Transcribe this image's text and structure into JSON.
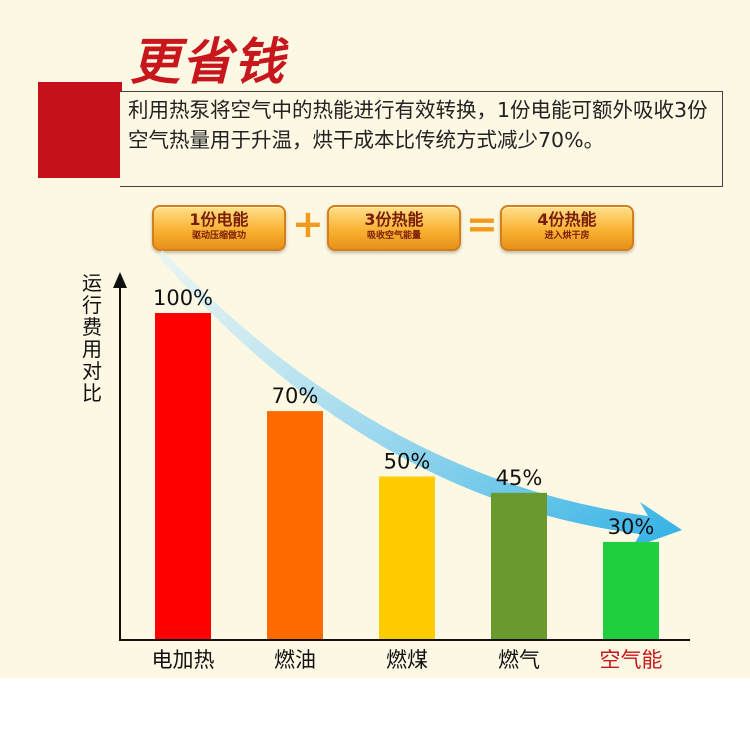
{
  "title": "更省钱",
  "description": "利用热泵将空气中的热能进行有效转换，1份电能可额外吸收3份空气热量用于升温，烘干成本比传统方式减少70%。",
  "equation": {
    "items": [
      {
        "main": "1份电能",
        "sub": "驱动压缩做功"
      },
      {
        "main": "3份热能",
        "sub": "吸收空气能量"
      },
      {
        "main": "4份热能",
        "sub": "进入烘干房"
      }
    ],
    "plus": "+",
    "equals": "="
  },
  "colors": {
    "accent_red": "#c5101a",
    "pill_orange": "#f9b233",
    "arrow_blue": "#3cb6e6"
  },
  "chart_data": {
    "type": "bar",
    "ylabel": "运行费用对比",
    "categories": [
      "电加热",
      "燃油",
      "燃煤",
      "燃气",
      "空气能"
    ],
    "values": [
      100,
      70,
      50,
      45,
      30
    ],
    "value_labels": [
      "100%",
      "70%",
      "50%",
      "45%",
      "30%"
    ],
    "unit": "%",
    "ylim": [
      0,
      110
    ],
    "bar_colors": [
      "#ff0000",
      "#ff6a00",
      "#ffcc00",
      "#6a9a2e",
      "#1fcf3f"
    ],
    "highlight_category": "空气能",
    "highlight_color": "#c8161d",
    "grid": false,
    "legend": "none"
  }
}
